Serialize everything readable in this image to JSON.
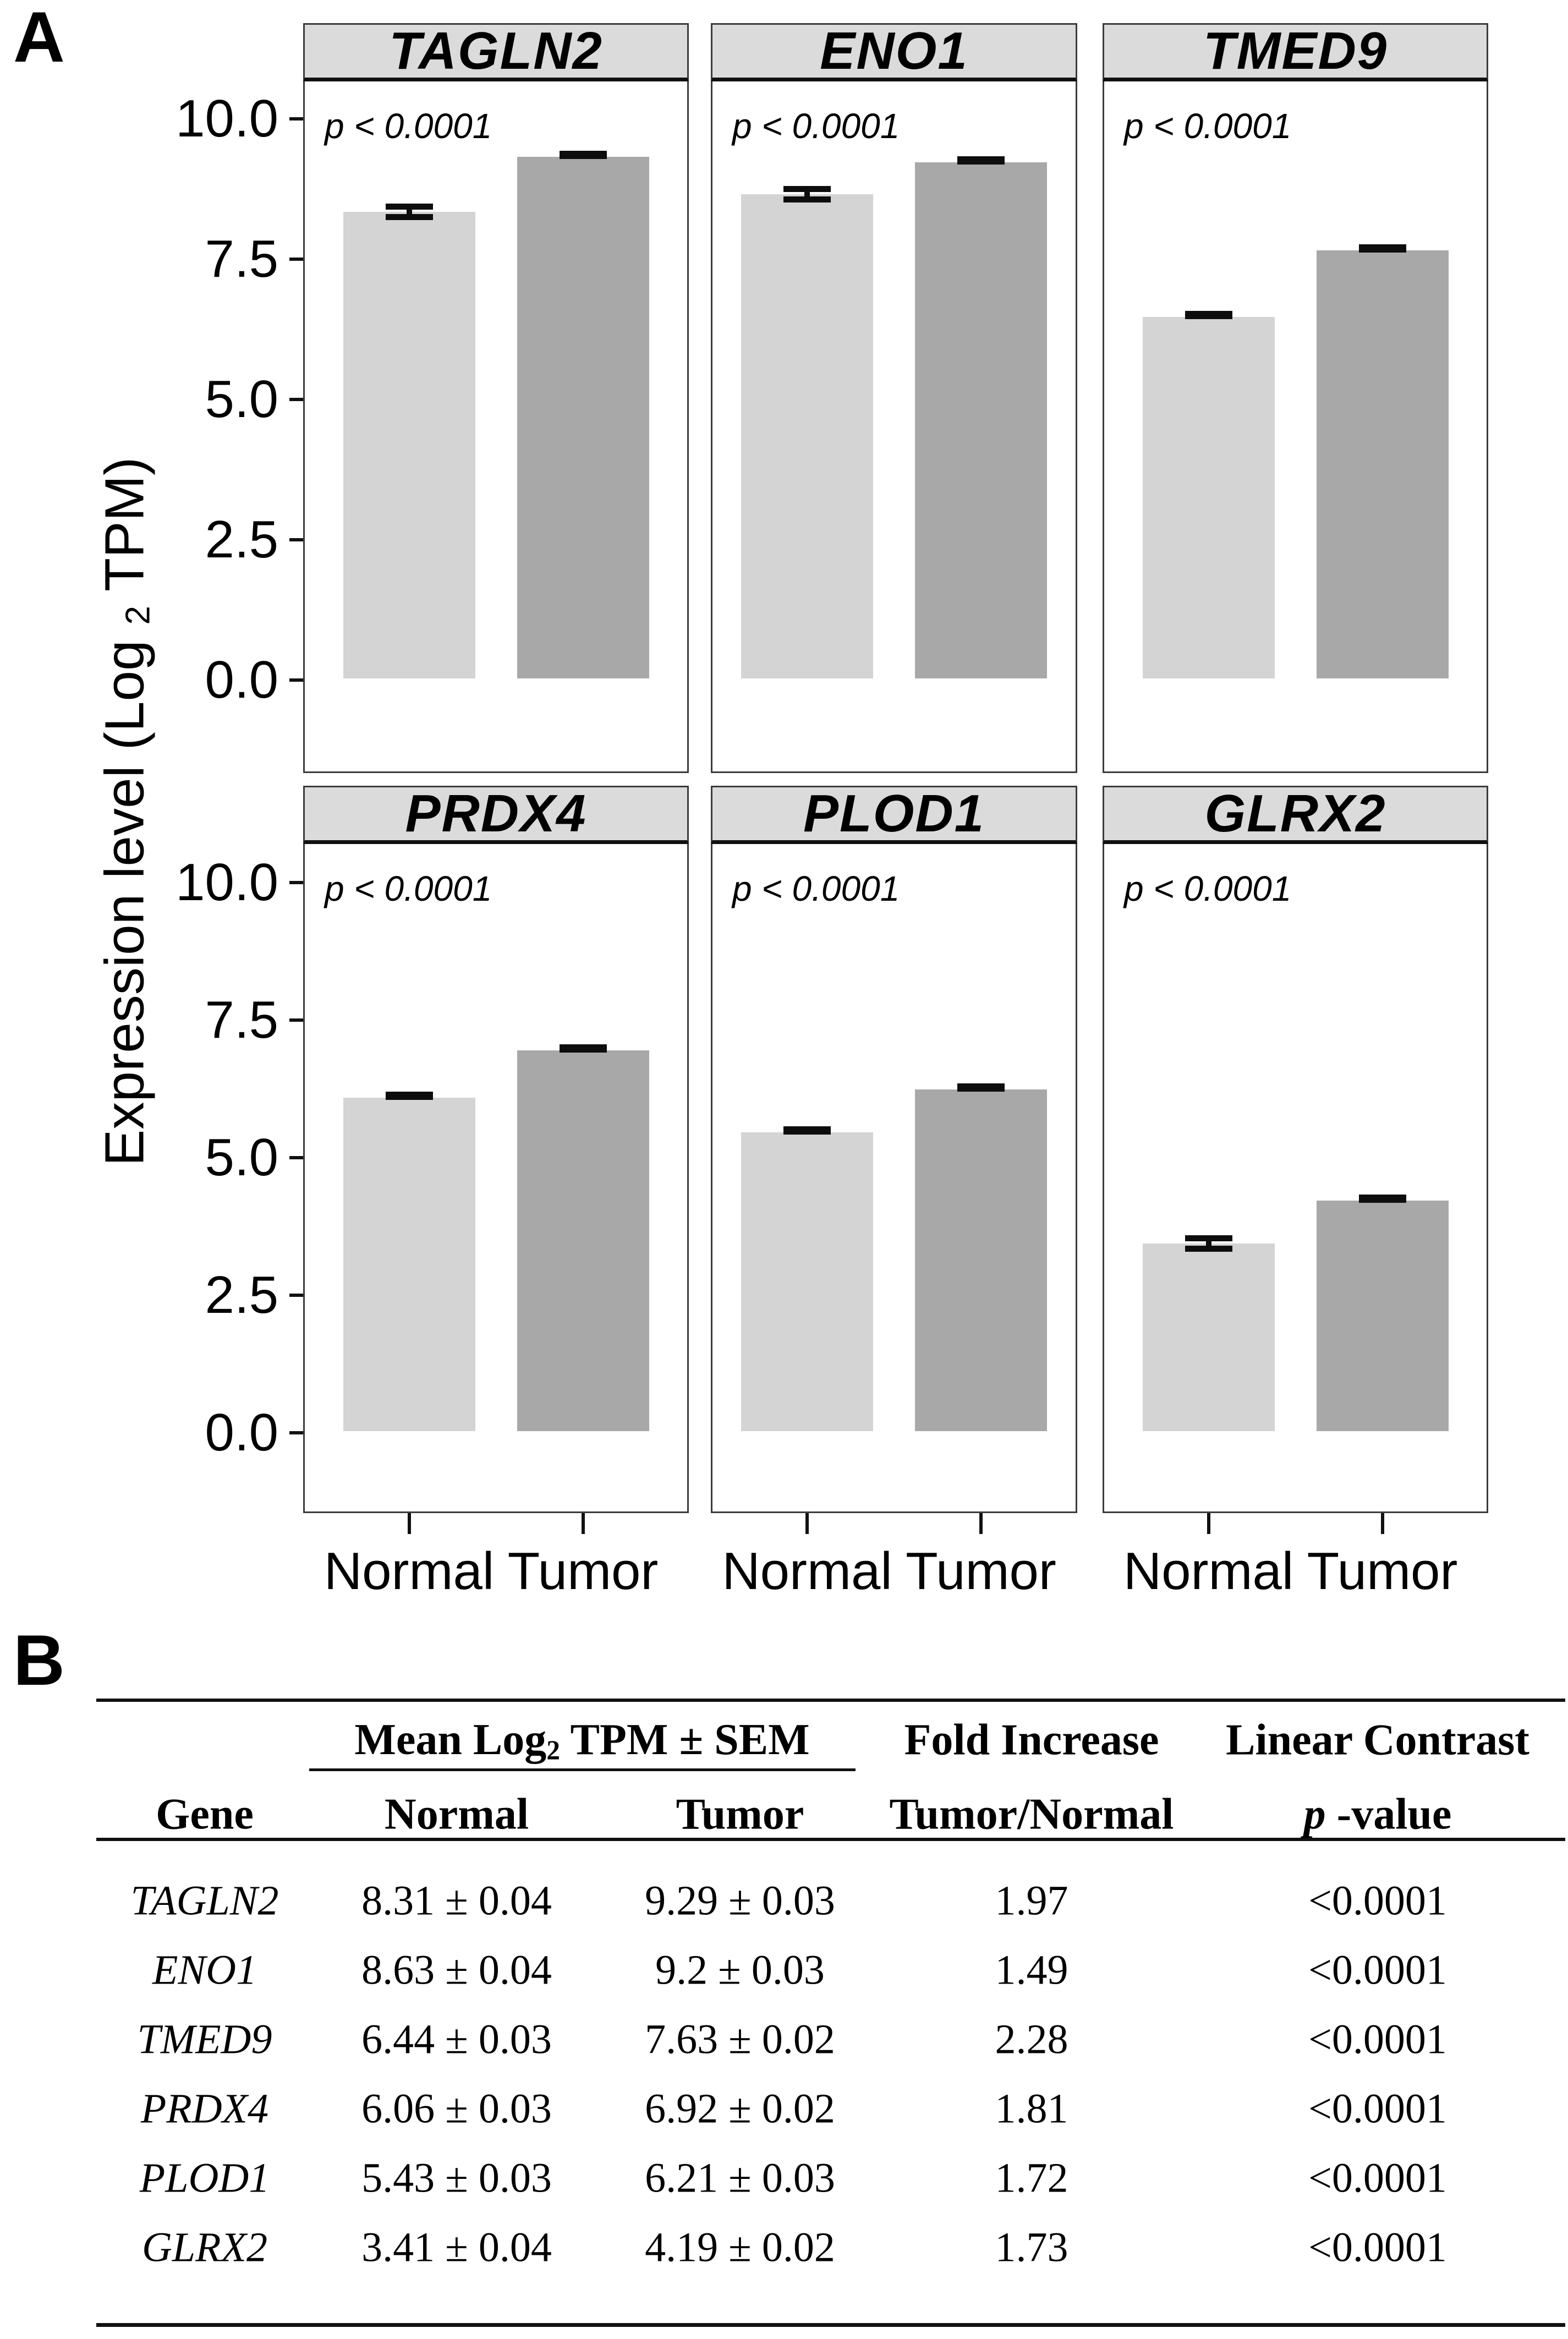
{
  "figure_labels": {
    "panel_a": "A",
    "panel_b": "B"
  },
  "y_axis": {
    "title_prefix": "Expression level (Log ",
    "title_subscript": "2",
    "title_suffix": " TPM)",
    "tick_labels": [
      "10.0",
      "7.5",
      "5.0",
      "2.5",
      "0.0"
    ],
    "tick_values": [
      10,
      7.5,
      5,
      2.5,
      0
    ]
  },
  "x_axis": {
    "categories": [
      "Normal",
      "Tumor"
    ]
  },
  "chart_data": [
    {
      "type": "bar",
      "title": "TAGLN2",
      "categories": [
        "Normal",
        "Tumor"
      ],
      "values": [
        8.31,
        9.29
      ],
      "sem": [
        0.04,
        0.03
      ],
      "p_annotation": "p < 0.0001",
      "xlabel": "",
      "ylabel": "Expression level (Log2 TPM)",
      "yticks": [
        0,
        2.5,
        5,
        7.5,
        10
      ],
      "ylim": [
        -1.7,
        10.7
      ],
      "grid": false,
      "legend": "none"
    },
    {
      "type": "bar",
      "title": "ENO1",
      "categories": [
        "Normal",
        "Tumor"
      ],
      "values": [
        8.63,
        9.2
      ],
      "sem": [
        0.04,
        0.03
      ],
      "p_annotation": "p < 0.0001",
      "xlabel": "",
      "ylabel": "Expression level (Log2 TPM)",
      "yticks": [
        0,
        2.5,
        5,
        7.5,
        10
      ],
      "ylim": [
        -1.7,
        10.7
      ],
      "grid": false,
      "legend": "none"
    },
    {
      "type": "bar",
      "title": "TMED9",
      "categories": [
        "Normal",
        "Tumor"
      ],
      "values": [
        6.44,
        7.63
      ],
      "sem": [
        0.03,
        0.02
      ],
      "p_annotation": "p < 0.0001",
      "xlabel": "",
      "ylabel": "Expression level (Log2 TPM)",
      "yticks": [
        0,
        2.5,
        5,
        7.5,
        10
      ],
      "ylim": [
        -1.7,
        10.7
      ],
      "grid": false,
      "legend": "none"
    },
    {
      "type": "bar",
      "title": "PRDX4",
      "categories": [
        "Normal",
        "Tumor"
      ],
      "values": [
        6.06,
        6.92
      ],
      "sem": [
        0.03,
        0.02
      ],
      "p_annotation": "p < 0.0001",
      "xlabel": "",
      "ylabel": "Expression level (Log2 TPM)",
      "yticks": [
        0,
        2.5,
        5,
        7.5,
        10
      ],
      "ylim": [
        -1.7,
        10.7
      ],
      "grid": false,
      "legend": "none"
    },
    {
      "type": "bar",
      "title": "PLOD1",
      "categories": [
        "Normal",
        "Tumor"
      ],
      "values": [
        5.43,
        6.21
      ],
      "sem": [
        0.03,
        0.03
      ],
      "p_annotation": "p < 0.0001",
      "xlabel": "",
      "ylabel": "Expression level (Log2 TPM)",
      "yticks": [
        0,
        2.5,
        5,
        7.5,
        10
      ],
      "ylim": [
        -1.7,
        10.7
      ],
      "grid": false,
      "legend": "none"
    },
    {
      "type": "bar",
      "title": "GLRX2",
      "categories": [
        "Normal",
        "Tumor"
      ],
      "values": [
        3.41,
        4.19
      ],
      "sem": [
        0.04,
        0.02
      ],
      "p_annotation": "p < 0.0001",
      "xlabel": "",
      "ylabel": "Expression level (Log2 TPM)",
      "yticks": [
        0,
        2.5,
        5,
        7.5,
        10
      ],
      "ylim": [
        -1.7,
        10.7
      ],
      "grid": false,
      "legend": "none"
    }
  ],
  "table": {
    "group_header": {
      "prefix": "Mean Log",
      "subscript": "2",
      "suffix": " TPM ± SEM"
    },
    "col_gene": "Gene",
    "col_normal": "Normal",
    "col_tumor": "Tumor",
    "col_fold_line1": "Fold Increase",
    "col_fold_line2": "Tumor/Normal",
    "col_contrast_line1": "Linear Contrast",
    "col_contrast_p": "p",
    "col_contrast_rest": "-value",
    "rows": [
      {
        "gene": "TAGLN2",
        "normal": "8.31 ± 0.04",
        "tumor": "9.29 ± 0.03",
        "fold": "1.97",
        "p": "<0.0001"
      },
      {
        "gene": "ENO1",
        "normal": "8.63 ± 0.04",
        "tumor": "9.2 ± 0.03",
        "fold": "1.49",
        "p": "<0.0001"
      },
      {
        "gene": "TMED9",
        "normal": "6.44 ± 0.03",
        "tumor": "7.63 ± 0.02",
        "fold": "2.28",
        "p": "<0.0001"
      },
      {
        "gene": "PRDX4",
        "normal": "6.06 ± 0.03",
        "tumor": "6.92 ± 0.02",
        "fold": "1.81",
        "p": "<0.0001"
      },
      {
        "gene": "PLOD1",
        "normal": "5.43 ± 0.03",
        "tumor": "6.21 ± 0.03",
        "fold": "1.72",
        "p": "<0.0001"
      },
      {
        "gene": "GLRX2",
        "normal": "3.41 ± 0.04",
        "tumor": "4.19 ± 0.02",
        "fold": "1.73",
        "p": "<0.0001"
      }
    ]
  },
  "colors": {
    "normal_bar": "#d4d4d4",
    "tumor_bar": "#a8a8a8",
    "panel_header_bg": "#dbdbdb",
    "panel_border": "#3c3c3c",
    "error_bar": "#0d0d0d",
    "rule": "#111111",
    "text": "#000000"
  }
}
